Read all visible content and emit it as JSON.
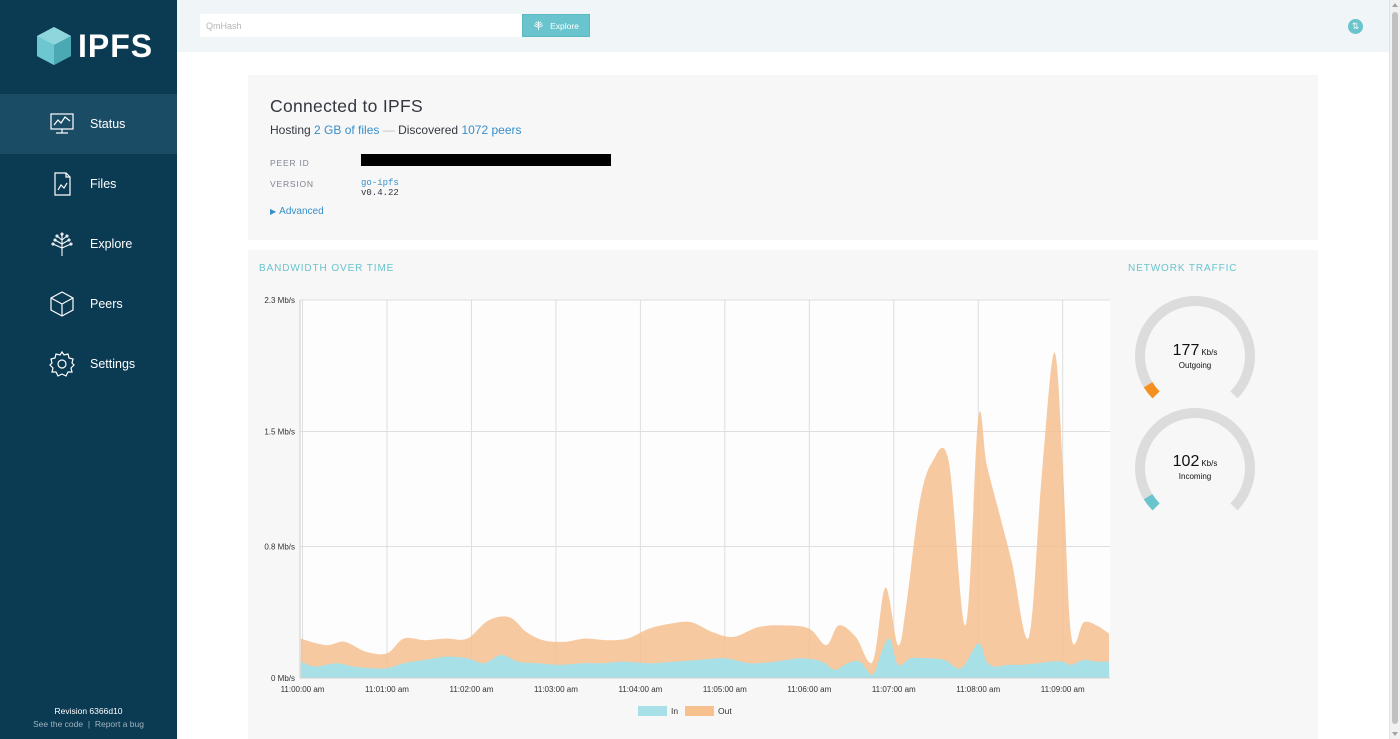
{
  "app": {
    "logo_text": "IPFS",
    "revision": "Revision 6366d10",
    "see_code": "See the code",
    "separator": "|",
    "report_bug": "Report a bug"
  },
  "sidebar": {
    "items": [
      {
        "label": "Status",
        "icon": "status-icon"
      },
      {
        "label": "Files",
        "icon": "files-icon"
      },
      {
        "label": "Explore",
        "icon": "explore-icon"
      },
      {
        "label": "Peers",
        "icon": "peers-icon"
      },
      {
        "label": "Settings",
        "icon": "settings-icon"
      }
    ],
    "active_index": 0
  },
  "topbar": {
    "search_placeholder": "QmHash",
    "explore_label": "Explore"
  },
  "status": {
    "title": "Connected to IPFS",
    "hosting_prefix": "Hosting ",
    "hosting_value": "2 GB of files",
    "dash": " — ",
    "discovered_prefix": "Discovered ",
    "peers_value": "1072 peers",
    "peer_id_label": "PEER ID",
    "version_label": "VERSION",
    "version_impl": "go-ipfs",
    "version_number": " v0.4.22",
    "advanced_label": "Advanced"
  },
  "bandwidth": {
    "heading": "BANDWIDTH OVER TIME"
  },
  "network": {
    "heading": "NETWORK TRAFFIC",
    "outgoing": {
      "value": "177",
      "unit": "Kb/s",
      "label": "Outgoing",
      "fraction": 0.05
    },
    "incoming": {
      "value": "102",
      "unit": "Kb/s",
      "label": "Incoming",
      "fraction": 0.05
    }
  },
  "colors": {
    "sidebar_bg": "#0b3a53",
    "accent_teal": "#69c4cd",
    "link_blue": "#378fca",
    "out_fill": "#f6c08f",
    "in_fill": "#a7e0e6",
    "gauge_track": "#dcdcdc",
    "gauge_out": "#f39021",
    "gauge_in": "#69c4cd"
  },
  "chart_data": {
    "type": "area",
    "title": "",
    "xlabel": "",
    "ylabel": "",
    "ylim": [
      0,
      2.3
    ],
    "y_ticks": [
      0,
      0.8,
      1.5,
      2.3
    ],
    "y_tick_labels": [
      "0 Mb/s",
      "0.8 Mb/s",
      "1.5 Mb/s",
      "2.3 Mb/s"
    ],
    "x_ticks": [
      0,
      1,
      2,
      3,
      4,
      5,
      6,
      7,
      8,
      9
    ],
    "x_tick_labels": [
      "11:00:00 am",
      "11:01:00 am",
      "11:02:00 am",
      "11:03:00 am",
      "11:04:00 am",
      "11:05:00 am",
      "11:06:00 am",
      "11:07:00 am",
      "11:08:00 am",
      "11:09:00 am"
    ],
    "xlim": [
      -0.03,
      9.56
    ],
    "grid": true,
    "legend": "bottom-center",
    "series": [
      {
        "name": "Out",
        "x": [
          -0.02,
          0.1,
          0.3,
          0.5,
          0.75,
          1.0,
          1.2,
          1.45,
          1.7,
          1.95,
          2.2,
          2.45,
          2.65,
          2.85,
          3.1,
          3.35,
          3.6,
          3.85,
          4.1,
          4.35,
          4.6,
          4.85,
          5.1,
          5.4,
          5.7,
          6.0,
          6.2,
          6.35,
          6.55,
          6.75,
          6.9,
          7.05,
          7.15,
          7.3,
          7.45,
          7.65,
          7.85,
          8.0,
          8.1,
          8.25,
          8.4,
          8.6,
          8.75,
          8.9,
          9.0,
          9.1,
          9.25,
          9.4,
          9.55
        ],
        "y": [
          0.24,
          0.22,
          0.2,
          0.22,
          0.16,
          0.15,
          0.24,
          0.23,
          0.24,
          0.24,
          0.35,
          0.37,
          0.28,
          0.23,
          0.22,
          0.24,
          0.23,
          0.24,
          0.3,
          0.33,
          0.34,
          0.28,
          0.25,
          0.31,
          0.32,
          0.3,
          0.2,
          0.32,
          0.25,
          0.1,
          0.55,
          0.2,
          0.45,
          1.05,
          1.31,
          1.32,
          0.32,
          1.58,
          1.3,
          1.0,
          0.7,
          0.25,
          1.22,
          1.98,
          1.3,
          0.26,
          0.34,
          0.32,
          0.27
        ]
      },
      {
        "name": "In",
        "x": [
          -0.02,
          0.15,
          0.4,
          0.6,
          0.8,
          1.0,
          1.2,
          1.45,
          1.7,
          1.95,
          2.15,
          2.35,
          2.55,
          2.8,
          3.05,
          3.3,
          3.55,
          3.8,
          4.1,
          4.4,
          4.7,
          5.0,
          5.3,
          5.6,
          5.9,
          6.15,
          6.3,
          6.45,
          6.6,
          6.75,
          6.85,
          6.95,
          7.05,
          7.2,
          7.4,
          7.6,
          7.8,
          8.0,
          8.1,
          8.2,
          8.35,
          8.5,
          8.7,
          8.85,
          9.0,
          9.1,
          9.25,
          9.4,
          9.55
        ],
        "y": [
          0.1,
          0.07,
          0.09,
          0.07,
          0.06,
          0.06,
          0.09,
          0.11,
          0.13,
          0.12,
          0.09,
          0.14,
          0.1,
          0.09,
          0.08,
          0.09,
          0.09,
          0.1,
          0.09,
          0.1,
          0.11,
          0.12,
          0.09,
          0.1,
          0.12,
          0.1,
          0.05,
          0.09,
          0.1,
          0.02,
          0.15,
          0.24,
          0.08,
          0.12,
          0.12,
          0.11,
          0.06,
          0.21,
          0.1,
          0.07,
          0.08,
          0.08,
          0.09,
          0.1,
          0.1,
          0.08,
          0.11,
          0.1,
          0.1
        ]
      }
    ]
  }
}
